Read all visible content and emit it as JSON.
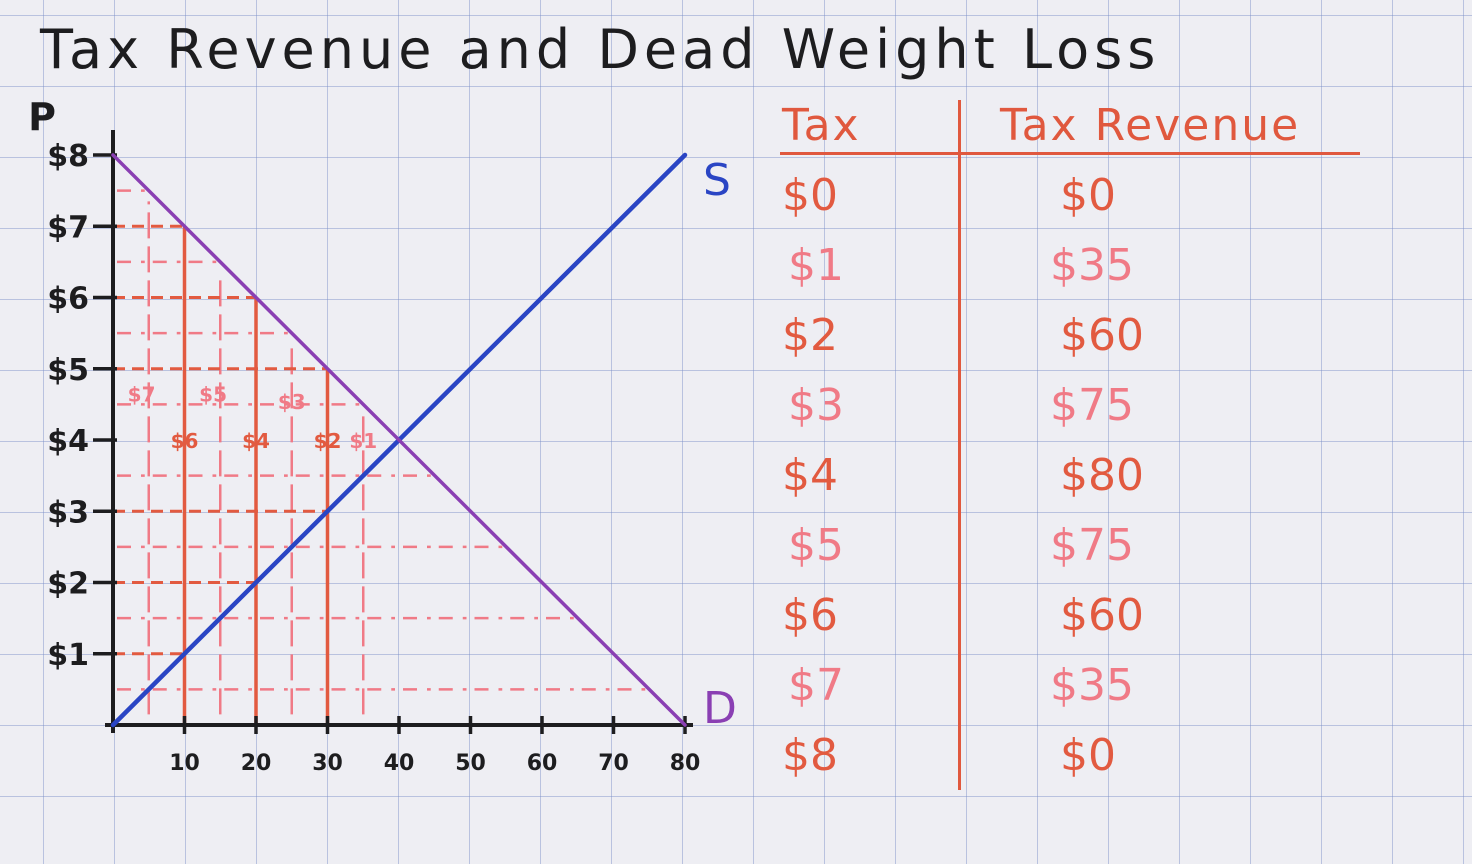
{
  "title": "Tax Revenue and Dead Weight Loss",
  "chart_data": {
    "type": "line",
    "title": "Tax Revenue and Dead Weight Loss",
    "ylabel": "P",
    "xlabel": "",
    "xlim": [
      0,
      80
    ],
    "ylim": [
      0,
      8
    ],
    "x_ticks": [
      "10",
      "20",
      "30",
      "40",
      "50",
      "60",
      "70",
      "80"
    ],
    "y_ticks": [
      "$1",
      "$2",
      "$3",
      "$4",
      "$5",
      "$6",
      "$7",
      "$8"
    ],
    "series": [
      {
        "name": "S",
        "color": "#2a45c4",
        "x": [
          0,
          80
        ],
        "y": [
          0,
          8
        ]
      },
      {
        "name": "D",
        "color": "#8a3fb3",
        "x": [
          0,
          80
        ],
        "y": [
          8,
          0
        ]
      }
    ],
    "equilibrium": {
      "x": 40,
      "y": 4
    },
    "revenue_boxes": [
      {
        "tax": 6,
        "quantity": 10
      },
      {
        "tax": 4,
        "quantity": 20
      },
      {
        "tax": 2,
        "quantity": 30
      }
    ],
    "area_labels": [
      {
        "text": "$7",
        "x": 4,
        "y": 4.65,
        "color": "#f07a86"
      },
      {
        "text": "$6",
        "x": 10,
        "y": 4.0,
        "color": "#e25a40"
      },
      {
        "text": "$5",
        "x": 14,
        "y": 4.65,
        "color": "#f07a86"
      },
      {
        "text": "$4",
        "x": 20,
        "y": 4.0,
        "color": "#e25a40"
      },
      {
        "text": "$3",
        "x": 25,
        "y": 4.55,
        "color": "#f07a86"
      },
      {
        "text": "$2",
        "x": 30,
        "y": 4.0,
        "color": "#e25a40"
      },
      {
        "text": "$1",
        "x": 35,
        "y": 4.0,
        "color": "#f07a86"
      }
    ]
  },
  "table": {
    "headers": [
      "Tax",
      "Tax Revenue"
    ],
    "rows": [
      {
        "tax": "$0",
        "revenue": "$0"
      },
      {
        "tax": "$1",
        "revenue": "$35"
      },
      {
        "tax": "$2",
        "revenue": "$60"
      },
      {
        "tax": "$3",
        "revenue": "$75"
      },
      {
        "tax": "$4",
        "revenue": "$80"
      },
      {
        "tax": "$5",
        "revenue": "$75"
      },
      {
        "tax": "$6",
        "revenue": "$60"
      },
      {
        "tax": "$7",
        "revenue": "$35"
      },
      {
        "tax": "$8",
        "revenue": "$0"
      }
    ]
  },
  "colors": {
    "axis": "#1d1d1f",
    "supply": "#2a45c4",
    "demand": "#8a3fb3",
    "revenue_dark": "#e25a40",
    "revenue_light": "#f07a86"
  }
}
